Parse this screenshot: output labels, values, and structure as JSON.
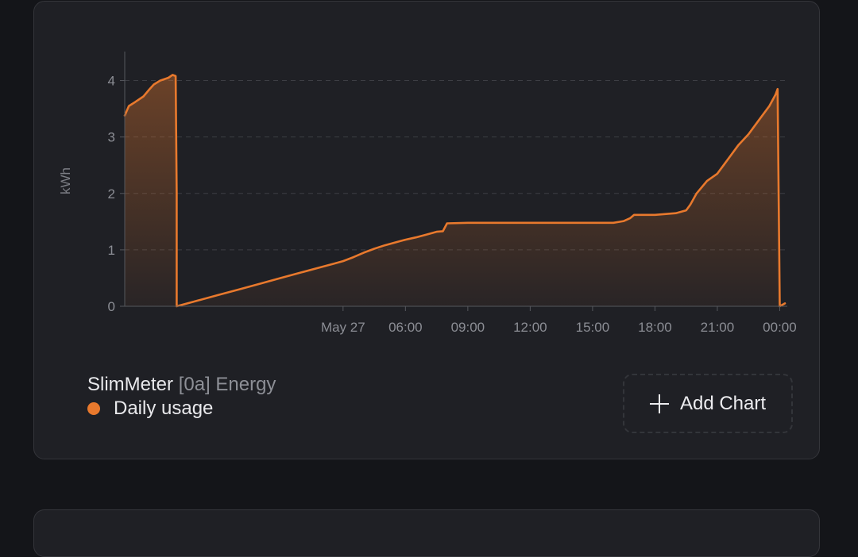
{
  "chart_data": {
    "type": "area",
    "ylabel": "kWh",
    "ylim": [
      0,
      4.5
    ],
    "yticks": [
      0,
      1,
      2,
      3,
      4
    ],
    "xlim": [
      -7.5,
      24.25
    ],
    "xtick_labels": [
      "May 27",
      "06:00",
      "09:00",
      "12:00",
      "15:00",
      "18:00",
      "21:00",
      "00:00"
    ],
    "xtick_values": [
      3,
      6,
      9,
      12,
      15,
      18,
      21,
      24
    ],
    "grid": "horizontal dashed",
    "series": [
      {
        "name": "Daily usage",
        "color": "#e8792d",
        "x": [
          -7.5,
          -7.3,
          -7.0,
          -6.6,
          -6.3,
          -6.1,
          -5.8,
          -5.4,
          -5.2,
          -5.05,
          -5.0,
          -5.0,
          -4.0,
          -3.0,
          -2.0,
          -1.0,
          0.0,
          1.0,
          2.0,
          2.5,
          3.0,
          3.5,
          4.0,
          4.5,
          5.0,
          5.5,
          6.0,
          6.5,
          7.0,
          7.5,
          7.8,
          8.0,
          9.0,
          12.0,
          15.0,
          16.0,
          16.5,
          16.8,
          17.0,
          18.0,
          19.0,
          19.5,
          19.7,
          20.0,
          20.5,
          21.0,
          21.3,
          21.5,
          22.0,
          22.5,
          23.0,
          23.5,
          23.8,
          23.9,
          24.0,
          24.25
        ],
        "y": [
          3.38,
          3.55,
          3.62,
          3.72,
          3.85,
          3.93,
          4.0,
          4.05,
          4.1,
          4.08,
          2.0,
          0.0,
          0.1,
          0.2,
          0.3,
          0.4,
          0.5,
          0.6,
          0.7,
          0.75,
          0.8,
          0.87,
          0.95,
          1.02,
          1.08,
          1.13,
          1.18,
          1.22,
          1.27,
          1.32,
          1.33,
          1.47,
          1.48,
          1.48,
          1.48,
          1.48,
          1.51,
          1.56,
          1.62,
          1.62,
          1.65,
          1.7,
          1.8,
          2.0,
          2.22,
          2.35,
          2.5,
          2.6,
          2.85,
          3.05,
          3.3,
          3.55,
          3.75,
          3.85,
          0.0,
          0.05
        ]
      }
    ]
  },
  "legend": {
    "device": "SlimMeter",
    "channel": "[0a] Energy",
    "item_label": "Daily usage"
  },
  "add_chart": {
    "label": "Add Chart"
  }
}
